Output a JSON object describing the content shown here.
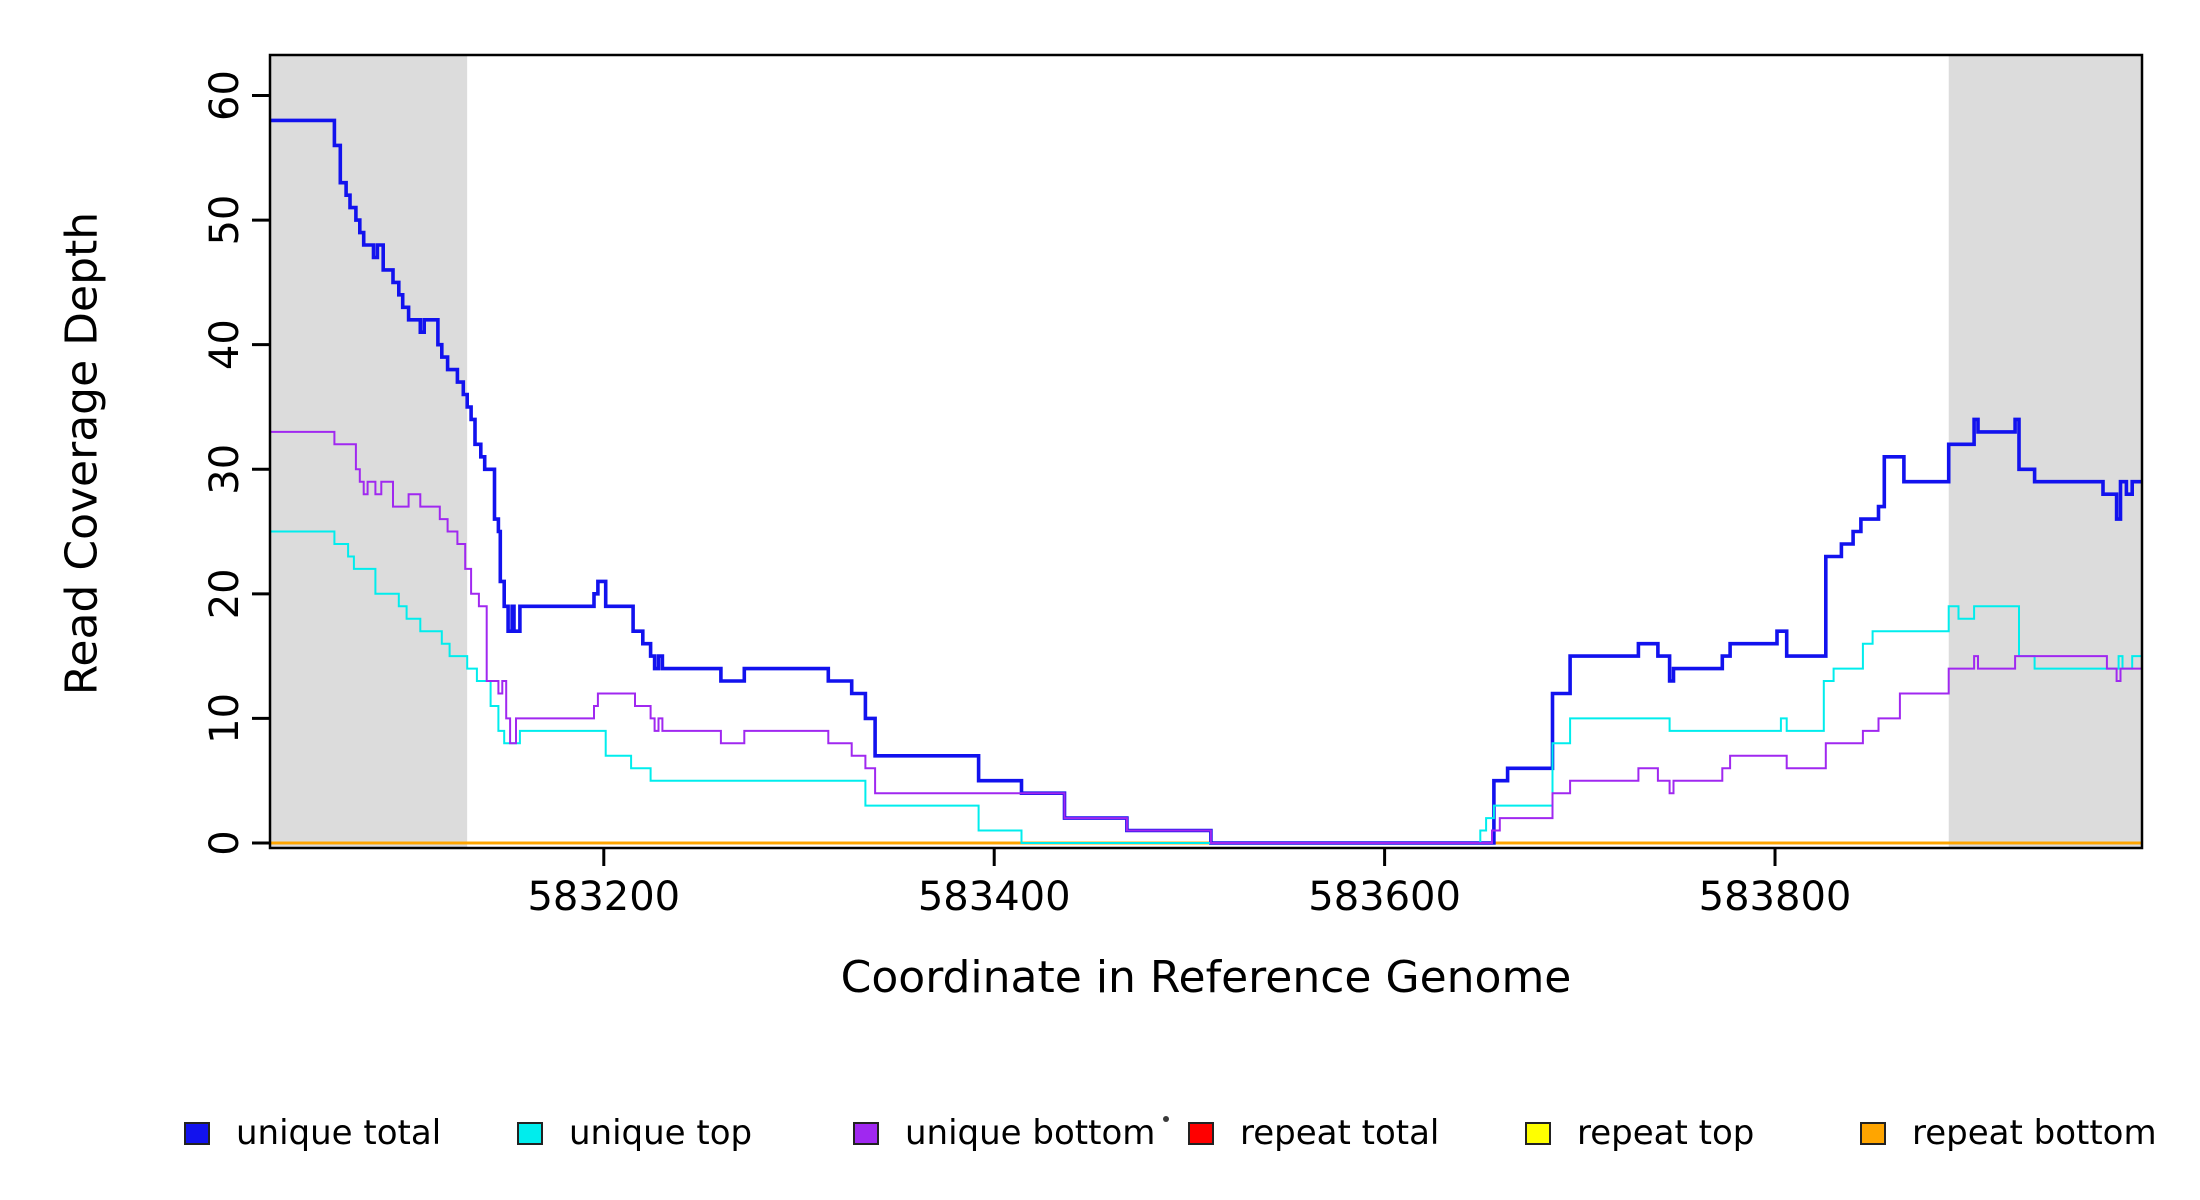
{
  "figure": {
    "background": "#ffffff",
    "box_color": "#000000"
  },
  "y_axis": {
    "label": "Read Coverage Depth",
    "ticks": [
      0,
      10,
      20,
      30,
      40,
      50,
      60
    ]
  },
  "x_axis": {
    "label": "Coordinate in Reference Genome",
    "ticks": [
      583200,
      583400,
      583600,
      583800
    ]
  },
  "legend": {
    "items": [
      {
        "name": "unique-total",
        "label": "unique total",
        "color": "#1212EE"
      },
      {
        "name": "unique-top",
        "label": "unique top",
        "color": "#00EDED"
      },
      {
        "name": "unique-bottom",
        "label": "unique bottom",
        "color": "#A028F0"
      },
      {
        "name": "repeat-total",
        "label": "repeat total",
        "color": "#FF0000"
      },
      {
        "name": "repeat-top",
        "label": "repeat top",
        "color": "#FFFF00"
      },
      {
        "name": "repeat-bottom",
        "label": "repeat bottom",
        "color": "#FFA500"
      }
    ],
    "note_dot": "·"
  },
  "chart_data": {
    "type": "line",
    "subtype": "step-after",
    "title": "",
    "xlabel": "Coordinate in Reference Genome",
    "ylabel": "Read Coverage Depth",
    "xlim": [
      583029,
      583988
    ],
    "ylim": [
      0,
      63.5
    ],
    "grid": false,
    "legend_position": "bottom",
    "highlight_color": "#DCDCDC",
    "highlight_regions": [
      [
        583029,
        583130
      ],
      [
        583889,
        583988
      ]
    ],
    "draw_order": [
      "repeat total",
      "repeat top",
      "repeat bottom",
      "unique total",
      "unique top",
      "unique bottom"
    ],
    "series": [
      {
        "name": "repeat total",
        "color": "#FF0000",
        "width": 2.6,
        "points": [
          [
            583029,
            0
          ]
        ]
      },
      {
        "name": "repeat top",
        "color": "#FFFF00",
        "width": 2.6,
        "points": [
          [
            583029,
            0
          ]
        ]
      },
      {
        "name": "repeat bottom",
        "color": "#FFA500",
        "width": 2.8,
        "points": [
          [
            583029,
            0
          ]
        ]
      },
      {
        "name": "unique total",
        "color": "#1212EE",
        "width": 3.6,
        "points": [
          [
            583029,
            58
          ],
          [
            583062,
            56
          ],
          [
            583065,
            53
          ],
          [
            583068,
            52
          ],
          [
            583070,
            51
          ],
          [
            583073,
            50
          ],
          [
            583075,
            49
          ],
          [
            583077,
            48
          ],
          [
            583082,
            47
          ],
          [
            583084,
            48
          ],
          [
            583087,
            46
          ],
          [
            583092,
            45
          ],
          [
            583095,
            44
          ],
          [
            583097,
            43
          ],
          [
            583100,
            42
          ],
          [
            583106,
            41
          ],
          [
            583108,
            42
          ],
          [
            583115,
            40
          ],
          [
            583117,
            39
          ],
          [
            583120,
            38
          ],
          [
            583125,
            37
          ],
          [
            583128,
            36
          ],
          [
            583130,
            35
          ],
          [
            583132,
            34
          ],
          [
            583134,
            32
          ],
          [
            583137,
            31
          ],
          [
            583139,
            30
          ],
          [
            583144,
            26
          ],
          [
            583146,
            25
          ],
          [
            583147,
            21
          ],
          [
            583149,
            19
          ],
          [
            583151,
            17
          ],
          [
            583153,
            19
          ],
          [
            583154,
            17
          ],
          [
            583157,
            19
          ],
          [
            583195,
            20
          ],
          [
            583197,
            21
          ],
          [
            583201,
            19
          ],
          [
            583215,
            17
          ],
          [
            583220,
            16
          ],
          [
            583224,
            15
          ],
          [
            583226,
            14
          ],
          [
            583228,
            15
          ],
          [
            583230,
            14
          ],
          [
            583260,
            13
          ],
          [
            583272,
            14
          ],
          [
            583315,
            13
          ],
          [
            583327,
            12
          ],
          [
            583334,
            10
          ],
          [
            583339,
            7
          ],
          [
            583392,
            5
          ],
          [
            583414,
            4
          ],
          [
            583436,
            2
          ],
          [
            583468,
            1
          ],
          [
            583511,
            0
          ],
          [
            583656,
            5
          ],
          [
            583663,
            6
          ],
          [
            583686,
            12
          ],
          [
            583695,
            15
          ],
          [
            583730,
            16
          ],
          [
            583740,
            15
          ],
          [
            583746,
            13
          ],
          [
            583748,
            14
          ],
          [
            583773,
            15
          ],
          [
            583777,
            16
          ],
          [
            583801,
            17
          ],
          [
            583806,
            15
          ],
          [
            583826,
            23
          ],
          [
            583834,
            24
          ],
          [
            583840,
            25
          ],
          [
            583844,
            26
          ],
          [
            583853,
            27
          ],
          [
            583856,
            31
          ],
          [
            583866,
            29
          ],
          [
            583889,
            32
          ],
          [
            583902,
            34
          ],
          [
            583904,
            33
          ],
          [
            583923,
            34
          ],
          [
            583925,
            30
          ],
          [
            583933,
            29
          ],
          [
            583968,
            28
          ],
          [
            583975,
            26
          ],
          [
            583977,
            29
          ],
          [
            583980,
            28
          ],
          [
            583983,
            29
          ]
        ]
      },
      {
        "name": "unique top",
        "color": "#00EDED",
        "width": 2.0,
        "points": [
          [
            583029,
            25
          ],
          [
            583062,
            24
          ],
          [
            583069,
            23
          ],
          [
            583072,
            22
          ],
          [
            583083,
            20
          ],
          [
            583095,
            19
          ],
          [
            583099,
            18
          ],
          [
            583106,
            17
          ],
          [
            583117,
            16
          ],
          [
            583121,
            15
          ],
          [
            583130,
            14
          ],
          [
            583135,
            13
          ],
          [
            583142,
            11
          ],
          [
            583146,
            9
          ],
          [
            583149,
            8
          ],
          [
            583157,
            9
          ],
          [
            583201,
            7
          ],
          [
            583214,
            6
          ],
          [
            583224,
            5
          ],
          [
            583334,
            3
          ],
          [
            583392,
            1
          ],
          [
            583414,
            0
          ],
          [
            583649,
            1
          ],
          [
            583652,
            2
          ],
          [
            583656,
            3
          ],
          [
            583686,
            8
          ],
          [
            583695,
            10
          ],
          [
            583746,
            9
          ],
          [
            583803,
            10
          ],
          [
            583806,
            9
          ],
          [
            583825,
            13
          ],
          [
            583830,
            14
          ],
          [
            583845,
            16
          ],
          [
            583850,
            17
          ],
          [
            583889,
            19
          ],
          [
            583894,
            18
          ],
          [
            583902,
            19
          ],
          [
            583925,
            15
          ],
          [
            583933,
            14
          ],
          [
            583976,
            15
          ],
          [
            583978,
            14
          ],
          [
            583983,
            15
          ]
        ]
      },
      {
        "name": "unique bottom",
        "color": "#A028F0",
        "width": 2.0,
        "points": [
          [
            583029,
            33
          ],
          [
            583062,
            32
          ],
          [
            583073,
            30
          ],
          [
            583075,
            29
          ],
          [
            583077,
            28
          ],
          [
            583079,
            29
          ],
          [
            583083,
            28
          ],
          [
            583086,
            29
          ],
          [
            583092,
            27
          ],
          [
            583100,
            28
          ],
          [
            583106,
            27
          ],
          [
            583116,
            26
          ],
          [
            583120,
            25
          ],
          [
            583125,
            24
          ],
          [
            583129,
            22
          ],
          [
            583132,
            20
          ],
          [
            583136,
            19
          ],
          [
            583140,
            13
          ],
          [
            583146,
            12
          ],
          [
            583148,
            13
          ],
          [
            583150,
            10
          ],
          [
            583152,
            8
          ],
          [
            583155,
            10
          ],
          [
            583195,
            11
          ],
          [
            583197,
            12
          ],
          [
            583216,
            11
          ],
          [
            583224,
            10
          ],
          [
            583226,
            9
          ],
          [
            583228,
            10
          ],
          [
            583230,
            9
          ],
          [
            583260,
            8
          ],
          [
            583272,
            9
          ],
          [
            583315,
            8
          ],
          [
            583327,
            7
          ],
          [
            583334,
            6
          ],
          [
            583339,
            4
          ],
          [
            583436,
            2
          ],
          [
            583468,
            1
          ],
          [
            583511,
            0
          ],
          [
            583655,
            1
          ],
          [
            583659,
            2
          ],
          [
            583686,
            4
          ],
          [
            583695,
            5
          ],
          [
            583730,
            6
          ],
          [
            583740,
            5
          ],
          [
            583746,
            4
          ],
          [
            583748,
            5
          ],
          [
            583773,
            6
          ],
          [
            583777,
            7
          ],
          [
            583806,
            6
          ],
          [
            583826,
            8
          ],
          [
            583845,
            9
          ],
          [
            583853,
            10
          ],
          [
            583864,
            12
          ],
          [
            583889,
            14
          ],
          [
            583902,
            15
          ],
          [
            583904,
            14
          ],
          [
            583923,
            15
          ],
          [
            583970,
            14
          ],
          [
            583975,
            13
          ],
          [
            583977,
            14
          ]
        ]
      }
    ]
  }
}
